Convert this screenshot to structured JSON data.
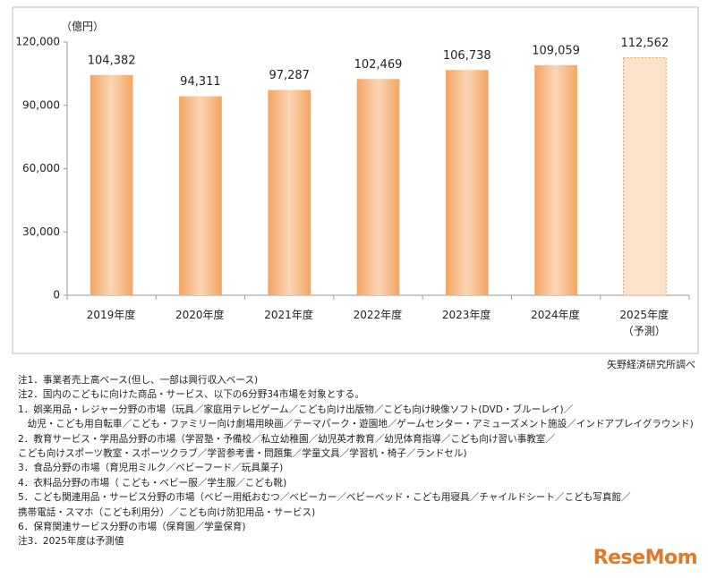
{
  "chart_data": {
    "type": "bar",
    "y_unit": "（億円）",
    "categories": [
      "2019年度",
      "2020年度",
      "2021年度",
      "2022年度",
      "2023年度",
      "2024年度",
      "2025年度\n（予測）"
    ],
    "values": [
      104382,
      94311,
      97287,
      102469,
      106738,
      109059,
      112562
    ],
    "value_labels": [
      "104,382",
      "94,311",
      "97,287",
      "102,469",
      "106,738",
      "109,059",
      "112,562"
    ],
    "colors": [
      "#f4a460",
      "#f4a460",
      "#f4a460",
      "#f4a460",
      "#f4a460",
      "#f4a460",
      "#fde3cc"
    ],
    "edge_styles": [
      "solid",
      "solid",
      "solid",
      "solid",
      "solid",
      "solid",
      "dashed"
    ],
    "ylim": [
      0,
      120000
    ],
    "yticks": [
      0,
      {
        "value": 30000,
        "label": "30,000"
      },
      {
        "value": 60000,
        "label": "60,000"
      },
      {
        "value": 90000,
        "label": "90,000"
      },
      {
        "value": 120000,
        "label": "120,000"
      }
    ],
    "grid": false,
    "source": "矢野経済研究所調べ",
    "notes": [
      "注1．事業者売上高ベース(但し、一部は興行収入ベース)",
      "注2．国内のこどもに向けた商品・サービス、以下の6分野34市場を対象とする。",
      "1．娯楽用品・レジャー分野の市場（玩具／家庭用テレビゲーム／こども向け出版物／こども向け映像ソフト(DVD・ブルーレイ)／",
      "　幼児・こども用自転車／こども・ファミリー向け劇場用映画／テーマパーク・遊園地／ゲームセンター・アミューズメント施設／インドアプレイグラウンド)",
      "2．教育サービス・学用品分野の市場（学習塾・予備校／私立幼稚園／幼児英才教育／幼児体育指導／こども向け習い事教室／",
      "こども向けスポーツ教室・スポーツクラブ／学習参考書・問題集／学童文具／学習机・椅子／ランドセル)",
      "3．食品分野の市場（育児用ミルク／ベビーフード／玩具菓子)",
      "4．衣料品分野の市場（ こども・ベビー服／学生服／こども靴)",
      "5．こども関連用品・サービス分野の市場（ベビー用紙おむつ／ベビーカー／ベビーベッド・こども用寝具／チャイルドシート／こども写真館／",
      "携帯電話・スマホ（こども利用分）／こども向け防犯用品・サービス)",
      "6．保育関連サービス分野の市場（保育園／学童保育)",
      "注3．2025年度は予測値"
    ]
  },
  "logo": "ReseMom"
}
